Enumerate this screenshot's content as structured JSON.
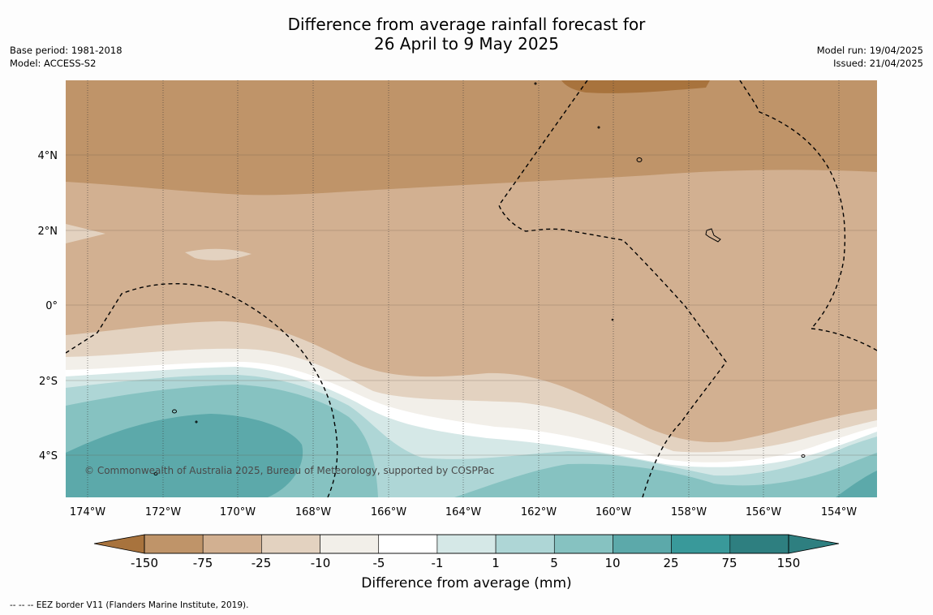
{
  "header": {
    "title_line1": "Difference from average rainfall forecast for",
    "title_line2": "26 April to 9 May 2025",
    "base_period": "Base period: 1981-2018",
    "model": "Model: ACCESS-S2",
    "model_run": "Model run: 19/04/2025",
    "issued": "Issued: 21/04/2025"
  },
  "map": {
    "y_ticks": [
      "4°N",
      "2°N",
      "0°",
      "2°S",
      "4°S"
    ],
    "x_ticks": [
      "174°W",
      "172°W",
      "170°W",
      "168°W",
      "166°W",
      "164°W",
      "162°W",
      "160°W",
      "158°W",
      "156°W",
      "154°W"
    ],
    "copyright": "© Commonwealth of Australia 2025, Bureau of Meteorology, supported by COSPPac"
  },
  "colorbar": {
    "labels": [
      "-150",
      "-75",
      "-25",
      "-10",
      "-5",
      "-1",
      "1",
      "5",
      "10",
      "25",
      "75",
      "150"
    ],
    "colors": [
      "#a8733d",
      "#bf9469",
      "#d2b091",
      "#e3d2c0",
      "#f2efe9",
      "#ffffff",
      "#d5e8e7",
      "#aed6d6",
      "#86c2c1",
      "#5ca9aa",
      "#39999a",
      "#2e7f80"
    ],
    "title": "Difference from average (mm)"
  },
  "footer": {
    "eez_note": "--  --  -- EEZ border V11 (Flanders Marine Institute, 2019)."
  }
}
